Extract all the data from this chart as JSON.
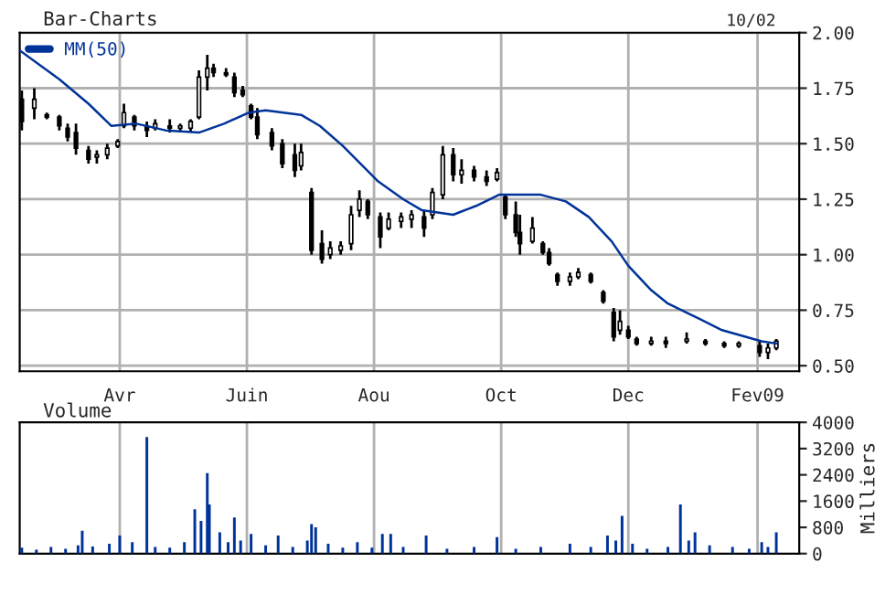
{
  "chart_data": [
    {
      "type": "candlestick",
      "title": "Bar-Charts",
      "annotations": [
        "10/02"
      ],
      "color": "#000000",
      "x": [
        "2008-02-14",
        "2008-02-20",
        "2008-02-26",
        "2008-03-03",
        "2008-03-07",
        "2008-03-11",
        "2008-03-17",
        "2008-03-21",
        "2008-03-26",
        "2008-03-31",
        "2008-04-03",
        "2008-04-08",
        "2008-04-14",
        "2008-04-18",
        "2008-04-25",
        "2008-04-30",
        "2008-05-05",
        "2008-05-09",
        "2008-05-13",
        "2008-05-16",
        "2008-05-22",
        "2008-05-26",
        "2008-05-30",
        "2008-06-03",
        "2008-06-06",
        "2008-06-13",
        "2008-06-18",
        "2008-06-24",
        "2008-06-27",
        "2008-07-02",
        "2008-07-07",
        "2008-07-11",
        "2008-07-16",
        "2008-07-21",
        "2008-07-25",
        "2008-07-29",
        "2008-08-04",
        "2008-08-08",
        "2008-08-14",
        "2008-08-19",
        "2008-08-25",
        "2008-08-29",
        "2008-09-03",
        "2008-09-08",
        "2008-09-12",
        "2008-09-18",
        "2008-09-24",
        "2008-09-29",
        "2008-10-03",
        "2008-10-08",
        "2008-10-10",
        "2008-10-16",
        "2008-10-21",
        "2008-10-24",
        "2008-10-28",
        "2008-11-03",
        "2008-11-07",
        "2008-11-13",
        "2008-11-19",
        "2008-11-24",
        "2008-11-27",
        "2008-12-01",
        "2008-12-05",
        "2008-12-12",
        "2008-12-19",
        "2008-12-29",
        "2009-01-07",
        "2009-01-16",
        "2009-01-23",
        "2009-02-02",
        "2009-02-06",
        "2009-02-10"
      ],
      "ohlc": [
        [
          1.7,
          1.74,
          1.56,
          1.6
        ],
        [
          1.66,
          1.75,
          1.61,
          1.7
        ],
        [
          1.63,
          1.64,
          1.61,
          1.62
        ],
        [
          1.62,
          1.63,
          1.56,
          1.58
        ],
        [
          1.57,
          1.59,
          1.51,
          1.53
        ],
        [
          1.55,
          1.59,
          1.45,
          1.48
        ],
        [
          1.47,
          1.49,
          1.41,
          1.43
        ],
        [
          1.44,
          1.47,
          1.41,
          1.45
        ],
        [
          1.45,
          1.5,
          1.43,
          1.48
        ],
        [
          1.49,
          1.52,
          1.48,
          1.51
        ],
        [
          1.58,
          1.68,
          1.57,
          1.64
        ],
        [
          1.62,
          1.63,
          1.56,
          1.58
        ],
        [
          1.58,
          1.6,
          1.53,
          1.56
        ],
        [
          1.57,
          1.61,
          1.56,
          1.59
        ],
        [
          1.58,
          1.61,
          1.55,
          1.57
        ],
        [
          1.57,
          1.59,
          1.55,
          1.58
        ],
        [
          1.57,
          1.61,
          1.55,
          1.6
        ],
        [
          1.62,
          1.83,
          1.61,
          1.8
        ],
        [
          1.8,
          1.9,
          1.74,
          1.84
        ],
        [
          1.84,
          1.86,
          1.8,
          1.82
        ],
        [
          1.82,
          1.84,
          1.8,
          1.81
        ],
        [
          1.8,
          1.82,
          1.71,
          1.73
        ],
        [
          1.74,
          1.76,
          1.71,
          1.72
        ],
        [
          1.67,
          1.68,
          1.61,
          1.62
        ],
        [
          1.62,
          1.66,
          1.52,
          1.54
        ],
        [
          1.55,
          1.57,
          1.47,
          1.49
        ],
        [
          1.5,
          1.52,
          1.39,
          1.41
        ],
        [
          1.45,
          1.5,
          1.35,
          1.38
        ],
        [
          1.4,
          1.5,
          1.38,
          1.46
        ],
        [
          1.28,
          1.3,
          1.0,
          1.02
        ],
        [
          1.05,
          1.11,
          0.96,
          0.98
        ],
        [
          1.0,
          1.06,
          0.98,
          1.03
        ],
        [
          1.02,
          1.06,
          1.0,
          1.04
        ],
        [
          1.05,
          1.22,
          1.02,
          1.18
        ],
        [
          1.2,
          1.29,
          1.17,
          1.25
        ],
        [
          1.24,
          1.25,
          1.16,
          1.18
        ],
        [
          1.17,
          1.19,
          1.03,
          1.08
        ],
        [
          1.12,
          1.19,
          1.11,
          1.16
        ],
        [
          1.15,
          1.19,
          1.12,
          1.17
        ],
        [
          1.16,
          1.2,
          1.12,
          1.18
        ],
        [
          1.17,
          1.2,
          1.08,
          1.12
        ],
        [
          1.18,
          1.3,
          1.16,
          1.28
        ],
        [
          1.27,
          1.49,
          1.25,
          1.45
        ],
        [
          1.45,
          1.48,
          1.33,
          1.36
        ],
        [
          1.36,
          1.43,
          1.32,
          1.38
        ],
        [
          1.38,
          1.4,
          1.33,
          1.35
        ],
        [
          1.35,
          1.38,
          1.31,
          1.33
        ],
        [
          1.34,
          1.39,
          1.33,
          1.37
        ],
        [
          1.26,
          1.27,
          1.16,
          1.18
        ],
        [
          1.18,
          1.24,
          1.08,
          1.1
        ],
        [
          1.1,
          1.18,
          1.0,
          1.05
        ],
        [
          1.06,
          1.17,
          1.05,
          1.12
        ],
        [
          1.05,
          1.06,
          1.0,
          1.01
        ],
        [
          1.01,
          1.03,
          0.95,
          0.96
        ],
        [
          0.91,
          0.92,
          0.86,
          0.88
        ],
        [
          0.88,
          0.92,
          0.86,
          0.9
        ],
        [
          0.9,
          0.94,
          0.89,
          0.92
        ],
        [
          0.91,
          0.92,
          0.87,
          0.88
        ],
        [
          0.83,
          0.84,
          0.78,
          0.79
        ],
        [
          0.74,
          0.76,
          0.61,
          0.63
        ],
        [
          0.66,
          0.75,
          0.64,
          0.7
        ],
        [
          0.66,
          0.68,
          0.62,
          0.63
        ],
        [
          0.62,
          0.63,
          0.59,
          0.6
        ],
        [
          0.6,
          0.63,
          0.59,
          0.61
        ],
        [
          0.61,
          0.63,
          0.58,
          0.6
        ],
        [
          0.61,
          0.65,
          0.6,
          0.62
        ],
        [
          0.61,
          0.62,
          0.59,
          0.6
        ],
        [
          0.6,
          0.61,
          0.58,
          0.59
        ],
        [
          0.59,
          0.61,
          0.58,
          0.6
        ],
        [
          0.59,
          0.61,
          0.54,
          0.56
        ],
        [
          0.56,
          0.6,
          0.53,
          0.58
        ],
        [
          0.58,
          0.62,
          0.57,
          0.61
        ]
      ],
      "series": [
        {
          "name": "MM(50)",
          "type": "line",
          "color": "#003399",
          "x": [
            "2008-02-13",
            "2008-03-03",
            "2008-03-17",
            "2008-03-28",
            "2008-04-09",
            "2008-04-23",
            "2008-05-09",
            "2008-05-21",
            "2008-06-02",
            "2008-06-10",
            "2008-06-27",
            "2008-07-06",
            "2008-07-17",
            "2008-08-03",
            "2008-08-15",
            "2008-08-24",
            "2008-09-08",
            "2008-09-19",
            "2008-09-30",
            "2008-10-20",
            "2008-11-01",
            "2008-11-12",
            "2008-11-23",
            "2008-12-01",
            "2008-12-12",
            "2008-12-20",
            "2008-12-31",
            "2009-01-15",
            "2009-02-03",
            "2009-02-10"
          ],
          "values": [
            1.92,
            1.79,
            1.68,
            1.58,
            1.59,
            1.56,
            1.55,
            1.59,
            1.64,
            1.65,
            1.63,
            1.58,
            1.49,
            1.33,
            1.25,
            1.2,
            1.18,
            1.22,
            1.27,
            1.27,
            1.24,
            1.17,
            1.06,
            0.95,
            0.84,
            0.78,
            0.73,
            0.66,
            0.61,
            0.6
          ]
        }
      ],
      "xlim": [
        "2008-02-13",
        "2009-02-21"
      ],
      "xticks": [
        {
          "value": "2008-04-01",
          "label": "Avr"
        },
        {
          "value": "2008-06-01",
          "label": "Juin"
        },
        {
          "value": "2008-08-01",
          "label": "Aou"
        },
        {
          "value": "2008-10-01",
          "label": "Oct"
        },
        {
          "value": "2008-12-01",
          "label": "Dec"
        },
        {
          "value": "2009-02-01",
          "label": "Fev09"
        }
      ],
      "ylim": [
        0.475,
        2.0
      ],
      "yticks": [
        {
          "value": 0.5,
          "label": "0.50"
        },
        {
          "value": 0.75,
          "label": "0.75"
        },
        {
          "value": 1.0,
          "label": "1.00"
        },
        {
          "value": 1.25,
          "label": "1.25"
        },
        {
          "value": 1.5,
          "label": "1.50"
        },
        {
          "value": 1.75,
          "label": "1.75"
        },
        {
          "value": 2.0,
          "label": "2.00"
        }
      ],
      "grid": true,
      "legend": "top left"
    },
    {
      "type": "bar",
      "title": "Volume",
      "ylabel": "Milliers",
      "color": "#003399",
      "x": [
        "2008-02-14",
        "2008-02-21",
        "2008-02-28",
        "2008-03-06",
        "2008-03-12",
        "2008-03-14",
        "2008-03-19",
        "2008-03-27",
        "2008-04-01",
        "2008-04-07",
        "2008-04-14",
        "2008-04-18",
        "2008-04-25",
        "2008-05-02",
        "2008-05-07",
        "2008-05-10",
        "2008-05-13",
        "2008-05-14",
        "2008-05-19",
        "2008-05-23",
        "2008-05-26",
        "2008-05-29",
        "2008-06-03",
        "2008-06-10",
        "2008-06-16",
        "2008-06-23",
        "2008-06-30",
        "2008-07-02",
        "2008-07-04",
        "2008-07-10",
        "2008-07-17",
        "2008-07-24",
        "2008-07-31",
        "2008-08-05",
        "2008-08-09",
        "2008-08-15",
        "2008-08-26",
        "2008-09-05",
        "2008-09-18",
        "2008-09-29",
        "2008-10-08",
        "2008-10-20",
        "2008-11-03",
        "2008-11-13",
        "2008-11-21",
        "2008-11-25",
        "2008-11-28",
        "2008-12-03",
        "2008-12-10",
        "2008-12-20",
        "2008-12-26",
        "2008-12-30",
        "2009-01-02",
        "2009-01-09",
        "2009-01-20",
        "2009-01-28",
        "2009-02-03",
        "2009-02-06",
        "2009-02-10"
      ],
      "values": [
        180,
        120,
        200,
        150,
        250,
        700,
        220,
        300,
        550,
        350,
        3550,
        200,
        180,
        350,
        1350,
        1000,
        2450,
        1500,
        650,
        350,
        1100,
        400,
        600,
        250,
        550,
        200,
        400,
        900,
        800,
        300,
        180,
        350,
        180,
        600,
        600,
        200,
        550,
        150,
        200,
        500,
        150,
        200,
        300,
        200,
        550,
        400,
        1150,
        300,
        150,
        200,
        1500,
        400,
        650,
        250,
        200,
        150,
        350,
        200,
        650
      ],
      "xlim": [
        "2008-02-13",
        "2009-02-21"
      ],
      "xticks": [
        {
          "value": "2008-04-01",
          "label": null
        },
        {
          "value": "2008-06-01",
          "label": null
        },
        {
          "value": "2008-08-01",
          "label": null
        },
        {
          "value": "2008-10-01",
          "label": null
        },
        {
          "value": "2008-12-01",
          "label": null
        },
        {
          "value": "2009-02-01",
          "label": null
        }
      ],
      "ylim": [
        0,
        4000
      ],
      "yticks": [
        0,
        800,
        1600,
        2400,
        3200,
        4000
      ],
      "grid": "x",
      "tick_labels": "y"
    }
  ]
}
